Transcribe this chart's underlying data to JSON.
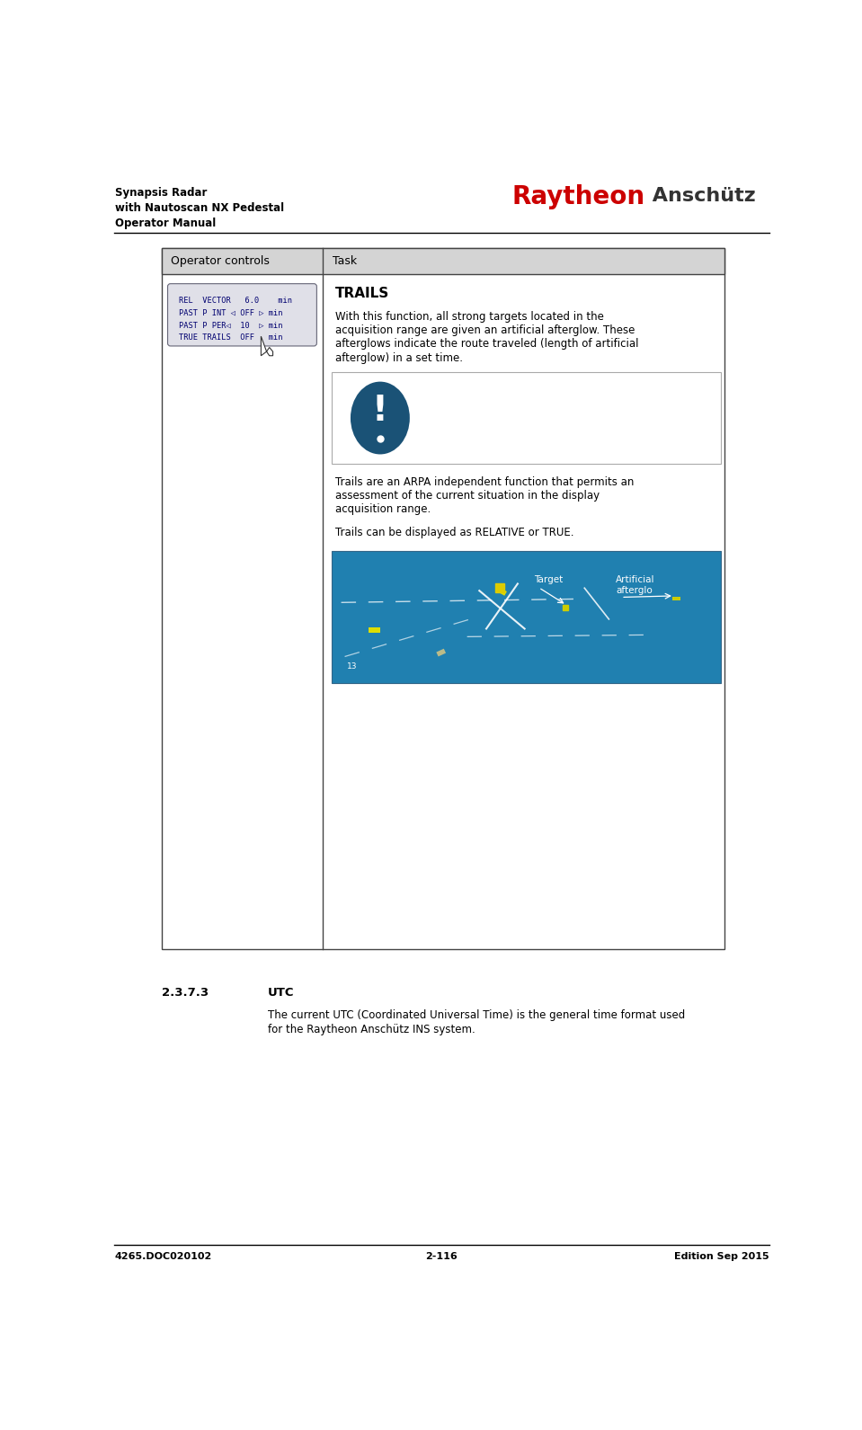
{
  "page_width": 9.59,
  "page_height": 15.91,
  "bg_color": "#ffffff",
  "header_left_lines": [
    "Synapsis Radar",
    "with Nautoscan NX Pedestal",
    "Operator Manual"
  ],
  "header_right_red": "Raytheon",
  "header_right_black": " Anschütz",
  "footer_left": "4265.DOC020102",
  "footer_center": "2-116",
  "footer_right": "Edition Sep 2015",
  "table_border_color": "#444444",
  "table_header_bg": "#d4d4d4",
  "operator_controls_label": "Operator controls",
  "task_label": "Task",
  "note_icon_color": "#1a5276",
  "note_box_border": "#aaaaaa",
  "radar_bg_color": "#2080b0"
}
